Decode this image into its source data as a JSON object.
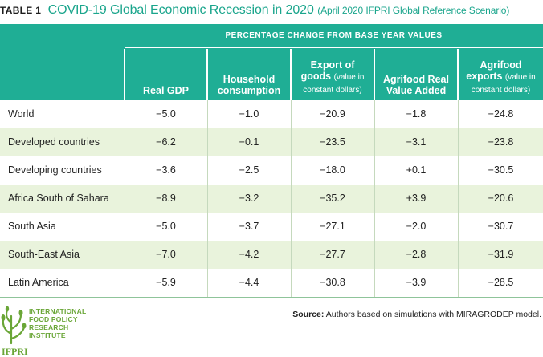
{
  "title": {
    "label": "TABLE 1",
    "main": "COVID-19 Global Economic Recession in 2020",
    "sub": "(April 2020 IFPRI Global Reference Scenario)"
  },
  "table": {
    "super_header": "PERCENTAGE CHANGE FROM BASE YEAR VALUES",
    "columns": [
      {
        "line1": "Real GDP"
      },
      {
        "line1": "Household",
        "line2": "consumption"
      },
      {
        "line1": "Export of",
        "line2": "goods",
        "note1": "(value in",
        "note2": "constant dollars)"
      },
      {
        "line1": "Agrifood Real",
        "line2": "Value Added"
      },
      {
        "line1": "Agrifood",
        "line2": "exports",
        "note1": "(value in",
        "note2": "constant dollars)"
      }
    ],
    "rows": [
      {
        "label": "World",
        "values": [
          "−5.0",
          "−1.0",
          "−20.9",
          "−1.8",
          "−24.8"
        ]
      },
      {
        "label": "Developed countries",
        "values": [
          "−6.2",
          "−0.1",
          "−23.5",
          "−3.1",
          "−23.8"
        ]
      },
      {
        "label": "Developing countries",
        "values": [
          "−3.6",
          "−2.5",
          "−18.0",
          "+0.1",
          "−30.5"
        ]
      },
      {
        "label": "Africa South of Sahara",
        "values": [
          "−8.9",
          "−3.2",
          "−35.2",
          "+3.9",
          "−20.6"
        ]
      },
      {
        "label": "South Asia",
        "values": [
          "−5.0",
          "−3.7",
          "−27.1",
          "−2.0",
          "−30.7"
        ]
      },
      {
        "label": "South-East Asia",
        "values": [
          "−7.0",
          "−4.2",
          "−27.7",
          "−2.8",
          "−31.9"
        ]
      },
      {
        "label": "Latin America",
        "values": [
          "−5.9",
          "−4.4",
          "−30.8",
          "−3.9",
          "−28.5"
        ]
      }
    ]
  },
  "source": {
    "label": "Source:",
    "text": "Authors based on simulations with MIRAGRODEP model."
  },
  "logo": {
    "lines": [
      "INTERNATIONAL",
      "FOOD POLICY",
      "RESEARCH",
      "INSTITUTE"
    ],
    "acronym": "IFPRI",
    "color": "#6aa637"
  },
  "colors": {
    "header_band": "#1fae95",
    "title_accent": "#1aa58c",
    "alt_row": "#e9f3dc"
  }
}
